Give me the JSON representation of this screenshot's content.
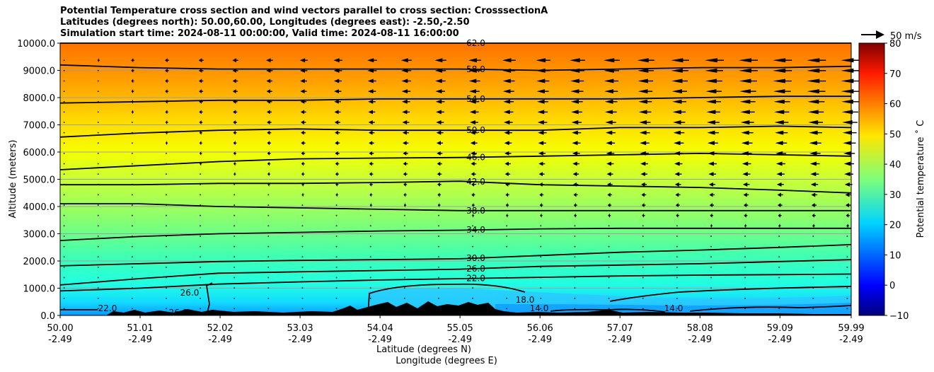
{
  "title": {
    "line1": "Potential Temperature cross section and wind vectors parallel to cross section: CrosssectionA",
    "line2": "Latitudes (degrees north): 50.00,60.00, Longitudes (degrees east): -2.50,-2.50",
    "line3": "Simulation start time: 2024-08-11 00:00:00, Valid time: 2024-08-11 16:00:00"
  },
  "vector_key": {
    "label": "50 m/s"
  },
  "colorbar": {
    "label": "Potential temperature ˚ C",
    "ticks": [
      "80",
      "70",
      "60",
      "50",
      "40",
      "30",
      "20",
      "10",
      "0",
      "−10"
    ],
    "range": [
      -10,
      80
    ],
    "colormap": "jet"
  },
  "chart_data": {
    "type": "contour",
    "title": "Potential Temperature cross section and wind vectors parallel to cross section: CrosssectionA",
    "xlabel_line1": "Latitude (degrees N)",
    "xlabel_line2": "Longitude (degrees E)",
    "ylabel": "Altitude (meters)",
    "xlim": [
      50.0,
      59.99
    ],
    "ylim": [
      0,
      10000
    ],
    "x_ticks": [
      {
        "lat": "50.00",
        "lon": "-2.49",
        "value": 50.0
      },
      {
        "lat": "51.01",
        "lon": "-2.49",
        "value": 51.01
      },
      {
        "lat": "52.02",
        "lon": "-2.49",
        "value": 52.02
      },
      {
        "lat": "53.03",
        "lon": "-2.49",
        "value": 53.03
      },
      {
        "lat": "54.04",
        "lon": "-2.49",
        "value": 54.04
      },
      {
        "lat": "55.05",
        "lon": "-2.49",
        "value": 55.05
      },
      {
        "lat": "56.06",
        "lon": "-2.49",
        "value": 56.06
      },
      {
        "lat": "57.07",
        "lon": "-2.49",
        "value": 57.07
      },
      {
        "lat": "58.08",
        "lon": "-2.49",
        "value": 58.08
      },
      {
        "lat": "59.09",
        "lon": "-2.49",
        "value": 59.09
      },
      {
        "lat": "59.99",
        "lon": "-2.49",
        "value": 59.99
      }
    ],
    "y_ticks": [
      "0.0",
      "1000.0",
      "2000.0",
      "3000.0",
      "4000.0",
      "5000.0",
      "6000.0",
      "7000.0",
      "8000.0",
      "9000.0",
      "10000.0"
    ],
    "y_tick_values": [
      0,
      1000,
      2000,
      3000,
      4000,
      5000,
      6000,
      7000,
      8000,
      9000,
      10000
    ],
    "grid": true,
    "contours": [
      {
        "level": 22,
        "label": "22.0",
        "points": [
          [
            50.0,
            900
          ],
          [
            51.0,
            1000
          ],
          [
            52.0,
            1150
          ],
          [
            53.0,
            1230
          ],
          [
            54.04,
            1300
          ],
          [
            55.05,
            1350
          ],
          [
            56.06,
            1400
          ],
          [
            57.07,
            1450
          ],
          [
            58.08,
            1480
          ],
          [
            59.09,
            1500
          ],
          [
            59.99,
            1520
          ]
        ]
      },
      {
        "level": 26,
        "label": "26.0",
        "points": [
          [
            50.0,
            1120
          ],
          [
            51.0,
            1350
          ],
          [
            52.0,
            1550
          ],
          [
            53.0,
            1600
          ],
          [
            54.04,
            1650
          ],
          [
            55.05,
            1700
          ],
          [
            56.06,
            1800
          ],
          [
            57.07,
            1850
          ],
          [
            58.08,
            1900
          ],
          [
            59.09,
            1980
          ],
          [
            59.99,
            2050
          ]
        ]
      },
      {
        "level": 30,
        "label": "30.0",
        "points": [
          [
            50.0,
            1820
          ],
          [
            51.0,
            1900
          ],
          [
            52.0,
            1980
          ],
          [
            53.0,
            2020
          ],
          [
            54.04,
            2050
          ],
          [
            55.05,
            2080
          ],
          [
            56.06,
            2200
          ],
          [
            57.07,
            2320
          ],
          [
            58.08,
            2400
          ],
          [
            59.09,
            2500
          ],
          [
            59.99,
            2600
          ]
        ]
      },
      {
        "level": 34,
        "label": "34.0",
        "points": [
          [
            50.0,
            2750
          ],
          [
            51.0,
            2900
          ],
          [
            52.0,
            3000
          ],
          [
            53.0,
            3050
          ],
          [
            54.04,
            3100
          ],
          [
            55.05,
            3130
          ],
          [
            56.06,
            3180
          ],
          [
            57.07,
            3200
          ],
          [
            58.08,
            3200
          ],
          [
            59.09,
            3200
          ],
          [
            59.99,
            3200
          ]
        ]
      },
      {
        "level": 38,
        "label": "38.0",
        "points": [
          [
            50.0,
            4100
          ],
          [
            51.0,
            4100
          ],
          [
            52.0,
            4000
          ],
          [
            53.0,
            3950
          ],
          [
            54.04,
            3900
          ],
          [
            55.05,
            3850
          ],
          [
            56.06,
            3850
          ],
          [
            57.07,
            3850
          ],
          [
            58.08,
            3850
          ],
          [
            59.09,
            3850
          ],
          [
            59.99,
            3850
          ]
        ]
      },
      {
        "level": 42,
        "label": "42.0",
        "points": [
          [
            50.0,
            4800
          ],
          [
            51.0,
            4800
          ],
          [
            52.0,
            4850
          ],
          [
            53.0,
            4850
          ],
          [
            54.04,
            4880
          ],
          [
            55.05,
            4930
          ],
          [
            56.06,
            4800
          ],
          [
            57.07,
            4750
          ],
          [
            58.08,
            4700
          ],
          [
            59.09,
            4600
          ],
          [
            59.99,
            4500
          ]
        ]
      },
      {
        "level": 46,
        "label": "46.0",
        "points": [
          [
            50.0,
            5350
          ],
          [
            51.0,
            5500
          ],
          [
            52.0,
            5650
          ],
          [
            53.0,
            5750
          ],
          [
            54.04,
            5780
          ],
          [
            55.05,
            5800
          ],
          [
            56.06,
            5850
          ],
          [
            57.07,
            5900
          ],
          [
            58.08,
            5950
          ],
          [
            59.09,
            5900
          ],
          [
            59.99,
            5850
          ]
        ]
      },
      {
        "level": 50,
        "label": "50.0",
        "points": [
          [
            50.0,
            6550
          ],
          [
            51.0,
            6700
          ],
          [
            52.0,
            6800
          ],
          [
            53.0,
            6850
          ],
          [
            54.04,
            6800
          ],
          [
            55.05,
            6800
          ],
          [
            56.06,
            6800
          ],
          [
            57.07,
            6900
          ],
          [
            58.08,
            6900
          ],
          [
            59.09,
            6950
          ],
          [
            59.99,
            6900
          ]
        ]
      },
      {
        "level": 54,
        "label": "54.0",
        "points": [
          [
            50.0,
            7800
          ],
          [
            51.0,
            7850
          ],
          [
            52.0,
            7900
          ],
          [
            53.0,
            7900
          ],
          [
            54.04,
            7950
          ],
          [
            55.05,
            7950
          ],
          [
            56.06,
            7950
          ],
          [
            57.07,
            7950
          ],
          [
            58.08,
            8000
          ],
          [
            59.09,
            8050
          ],
          [
            59.99,
            8050
          ]
        ]
      },
      {
        "level": 58,
        "label": "58.0",
        "points": [
          [
            50.0,
            9200
          ],
          [
            51.0,
            9100
          ],
          [
            52.0,
            9050
          ],
          [
            53.0,
            9050
          ],
          [
            54.04,
            9050
          ],
          [
            55.05,
            9050
          ],
          [
            56.06,
            9000
          ],
          [
            57.07,
            9050
          ],
          [
            58.08,
            9100
          ],
          [
            59.09,
            9100
          ],
          [
            59.99,
            9150
          ]
        ]
      },
      {
        "level": 62,
        "label": "62.0",
        "points": [
          [
            50.0,
            10000
          ],
          [
            54.5,
            10000
          ],
          [
            55.05,
            10000
          ],
          [
            59.99,
            10000
          ]
        ]
      }
    ],
    "terrain_note_values": [
      18,
      14,
      22,
      26
    ],
    "wind_direction": "southward (toward lower latitude) in upper levels"
  }
}
